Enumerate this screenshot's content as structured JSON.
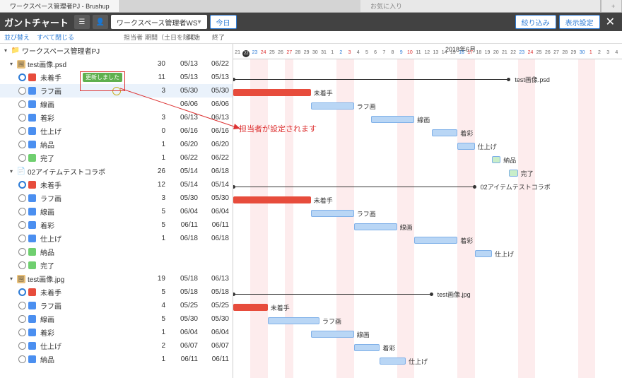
{
  "tabs": {
    "main": "ワークスペース管理者PJ - Brushup",
    "fav": "お気に入り",
    "plus": "+"
  },
  "toolbar": {
    "title": "ガントチャート",
    "ws": "ワークスペース管理者WS",
    "today": "今日",
    "filter": "絞り込み",
    "display": "表示設定"
  },
  "subbar": {
    "sort": "並び替え",
    "collapse": "すべて閉じる",
    "assignee": "担当者",
    "period": "期間（土日を除く）",
    "start": "開始",
    "end": "終了"
  },
  "calendar": {
    "month": "2018年6月",
    "days": [
      {
        "n": "21"
      },
      {
        "n": "22",
        "today": true
      },
      {
        "n": "23",
        "sat": true
      },
      {
        "n": "24",
        "sun": true
      },
      {
        "n": "25"
      },
      {
        "n": "26"
      },
      {
        "n": "27",
        "sun": true
      },
      {
        "n": "28"
      },
      {
        "n": "29"
      },
      {
        "n": "30"
      },
      {
        "n": "31"
      },
      {
        "n": "1"
      },
      {
        "n": "2",
        "sat": true
      },
      {
        "n": "3",
        "sun": true
      },
      {
        "n": "4"
      },
      {
        "n": "5"
      },
      {
        "n": "6"
      },
      {
        "n": "7"
      },
      {
        "n": "8"
      },
      {
        "n": "9",
        "sat": true
      },
      {
        "n": "10",
        "sun": true
      },
      {
        "n": "11"
      },
      {
        "n": "12"
      },
      {
        "n": "13"
      },
      {
        "n": "14"
      },
      {
        "n": "15"
      },
      {
        "n": "16",
        "sat": true
      },
      {
        "n": "17",
        "sun": true
      },
      {
        "n": "18"
      },
      {
        "n": "19"
      },
      {
        "n": "20"
      },
      {
        "n": "21"
      },
      {
        "n": "22"
      },
      {
        "n": "23",
        "sat": true
      },
      {
        "n": "24",
        "sun": true
      },
      {
        "n": "25"
      },
      {
        "n": "26"
      },
      {
        "n": "27"
      },
      {
        "n": "28"
      },
      {
        "n": "29"
      },
      {
        "n": "30",
        "sat": true
      },
      {
        "n": "1",
        "sun": true
      },
      {
        "n": "2"
      },
      {
        "n": "3"
      },
      {
        "n": "4"
      }
    ]
  },
  "annotation": {
    "badge": "更新しました",
    "text": "担当者が設定されます"
  },
  "colors": {
    "red": "#e74c3c",
    "blue": "#4b8ff0",
    "lightblue": "#b9d6f5",
    "green": "#6fcf6f",
    "greenfill": "#c9eec9"
  },
  "groups": [
    {
      "type": "root",
      "name": "ワークスペース管理者PJ",
      "icon": "folder-orange"
    },
    {
      "type": "item",
      "name": "test画像.psd",
      "icon": "img",
      "period": "30",
      "start": "05/13",
      "end": "06/22",
      "bar": {
        "kind": "line",
        "from": 0,
        "to": 32,
        "label": "test画像.psd"
      },
      "steps": [
        {
          "name": "未着手",
          "color": "#e74c3c",
          "sel": true,
          "period": "11",
          "start": "05/13",
          "end": "05/13",
          "bar": {
            "color": "#e74c3c",
            "from": 0,
            "to": 9,
            "label": "未着手"
          },
          "badge": true
        },
        {
          "name": "ラフ画",
          "color": "#4b8ff0",
          "period": "3",
          "start": "05/30",
          "end": "05/30",
          "bar": {
            "color": "#b9d6f5",
            "from": 9,
            "to": 14,
            "label": "ラフ画"
          },
          "hl": true,
          "user": true
        },
        {
          "name": "線画",
          "color": "#4b8ff0",
          "period": "",
          "start": "06/06",
          "end": "06/06",
          "bar": {
            "color": "#b9d6f5",
            "from": 16,
            "to": 21,
            "label": "線画"
          }
        },
        {
          "name": "着彩",
          "color": "#4b8ff0",
          "period": "3",
          "start": "06/13",
          "end": "06/13",
          "bar": {
            "color": "#b9d6f5",
            "from": 23,
            "to": 26,
            "label": "着彩"
          }
        },
        {
          "name": "仕上げ",
          "color": "#4b8ff0",
          "period": "0",
          "start": "06/16",
          "end": "06/16",
          "bar": {
            "color": "#b9d6f5",
            "from": 26,
            "to": 28,
            "label": "仕上げ"
          }
        },
        {
          "name": "納品",
          "color": "#4b8ff0",
          "period": "1",
          "start": "06/20",
          "end": "06/20",
          "bar": {
            "color": "#c9eec9",
            "from": 30,
            "to": 31,
            "label": "納品"
          }
        },
        {
          "name": "完了",
          "color": "#6fcf6f",
          "period": "1",
          "start": "06/22",
          "end": "06/22",
          "bar": {
            "color": "#c9eec9",
            "from": 32,
            "to": 33,
            "label": "完了"
          }
        }
      ]
    },
    {
      "type": "item",
      "name": "02アイテムテストコラボ",
      "icon": "doc",
      "period": "26",
      "start": "05/14",
      "end": "06/18",
      "bar": {
        "kind": "line",
        "from": 0,
        "to": 28,
        "label": "02アイテムテストコラボ"
      },
      "steps": [
        {
          "name": "未着手",
          "color": "#e74c3c",
          "sel": true,
          "period": "12",
          "start": "05/14",
          "end": "05/14",
          "bar": {
            "color": "#e74c3c",
            "from": 0,
            "to": 9,
            "label": "未着手"
          }
        },
        {
          "name": "ラフ画",
          "color": "#4b8ff0",
          "period": "3",
          "start": "05/30",
          "end": "05/30",
          "bar": {
            "color": "#b9d6f5",
            "from": 9,
            "to": 14,
            "label": "ラフ画"
          }
        },
        {
          "name": "線画",
          "color": "#4b8ff0",
          "period": "5",
          "start": "06/04",
          "end": "06/04",
          "bar": {
            "color": "#b9d6f5",
            "from": 14,
            "to": 19,
            "label": "線画"
          }
        },
        {
          "name": "着彩",
          "color": "#4b8ff0",
          "period": "5",
          "start": "06/11",
          "end": "06/11",
          "bar": {
            "color": "#b9d6f5",
            "from": 21,
            "to": 26,
            "label": "着彩"
          }
        },
        {
          "name": "仕上げ",
          "color": "#4b8ff0",
          "period": "1",
          "start": "06/18",
          "end": "06/18",
          "bar": {
            "color": "#b9d6f5",
            "from": 28,
            "to": 30,
            "label": "仕上げ"
          }
        },
        {
          "name": "納品",
          "color": "#6fcf6f",
          "period": "",
          "start": "",
          "end": ""
        },
        {
          "name": "完了",
          "color": "#6fcf6f",
          "period": "",
          "start": "",
          "end": ""
        }
      ]
    },
    {
      "type": "item",
      "name": "test画像.jpg",
      "icon": "img",
      "period": "19",
      "start": "05/18",
      "end": "06/13",
      "bar": {
        "kind": "line",
        "from": 0,
        "to": 23,
        "label": "test画像.jpg"
      },
      "steps": [
        {
          "name": "未着手",
          "color": "#e74c3c",
          "sel": true,
          "period": "5",
          "start": "05/18",
          "end": "05/18",
          "bar": {
            "color": "#e74c3c",
            "from": 0,
            "to": 4,
            "label": "未着手"
          }
        },
        {
          "name": "ラフ画",
          "color": "#4b8ff0",
          "period": "4",
          "start": "05/25",
          "end": "05/25",
          "bar": {
            "color": "#b9d6f5",
            "from": 4,
            "to": 10,
            "label": "ラフ画"
          }
        },
        {
          "name": "線画",
          "color": "#4b8ff0",
          "period": "5",
          "start": "05/30",
          "end": "05/30",
          "bar": {
            "color": "#b9d6f5",
            "from": 9,
            "to": 14,
            "label": "線画"
          }
        },
        {
          "name": "着彩",
          "color": "#4b8ff0",
          "period": "1",
          "start": "06/04",
          "end": "06/04",
          "bar": {
            "color": "#b9d6f5",
            "from": 14,
            "to": 17,
            "label": "着彩"
          }
        },
        {
          "name": "仕上げ",
          "color": "#4b8ff0",
          "period": "2",
          "start": "06/07",
          "end": "06/07",
          "bar": {
            "color": "#b9d6f5",
            "from": 17,
            "to": 20,
            "label": "仕上げ"
          }
        },
        {
          "name": "納品",
          "color": "#4b8ff0",
          "period": "1",
          "start": "06/11",
          "end": "06/11"
        }
      ]
    }
  ]
}
